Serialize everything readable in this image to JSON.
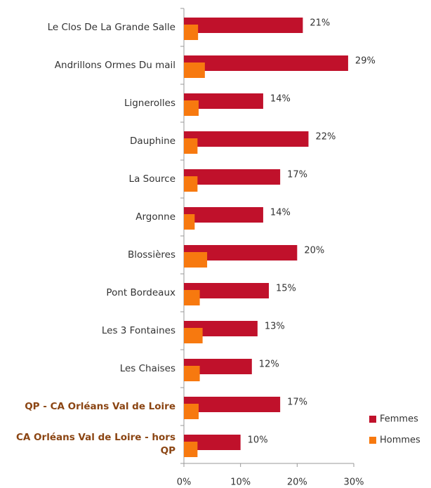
{
  "chart_data": {
    "type": "barh",
    "categories": [
      "Le Clos De La Grande Salle",
      "Andrillons Ormes Du mail",
      "Lignerolles",
      "Dauphine",
      "La Source",
      "Argonne",
      "Blossières",
      "Pont Bordeaux",
      "Les 3 Fontaines",
      "Les Chaises",
      "QP - CA Orléans Val de Loire",
      "CA Orléans Val de Loire - hors QP"
    ],
    "series": [
      {
        "name": "Femmes",
        "color": "#c0112b",
        "values": [
          21,
          29,
          14,
          22,
          17,
          14,
          20,
          15,
          13,
          12,
          17,
          10
        ],
        "value_labels": [
          "21%",
          "29%",
          "14%",
          "22%",
          "17%",
          "14%",
          "20%",
          "15%",
          "13%",
          "12%",
          "17%",
          "10%"
        ]
      },
      {
        "name": "Hommes",
        "color": "#f7790f",
        "values": [
          2.5,
          3.7,
          2.6,
          2.4,
          2.4,
          1.9,
          4.1,
          2.8,
          3.3,
          2.8,
          2.6,
          2.4
        ]
      }
    ],
    "xlim": [
      0,
      30
    ],
    "xticks": [
      {
        "value": 0,
        "label": "0%"
      },
      {
        "value": 10,
        "label": "10%"
      },
      {
        "value": 20,
        "label": "20%"
      },
      {
        "value": 30,
        "label": "30%"
      }
    ],
    "legend": "bottom-right"
  }
}
